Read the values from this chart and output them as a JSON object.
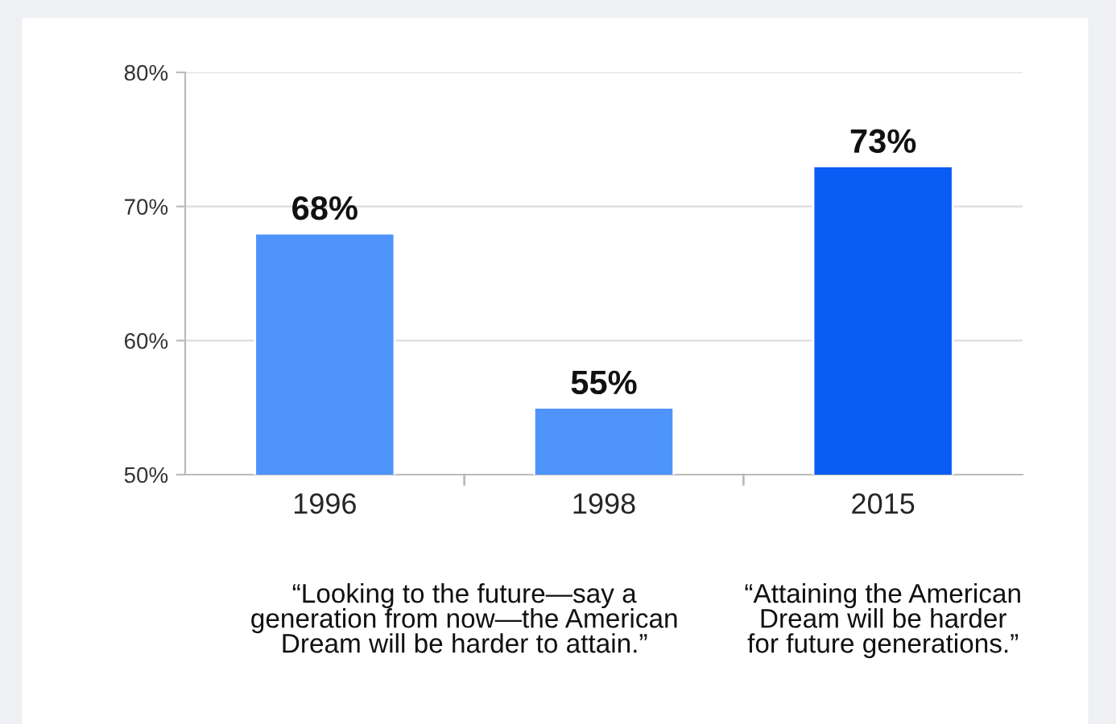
{
  "chart_data": {
    "type": "bar",
    "categories": [
      "1996",
      "1998",
      "2015"
    ],
    "values": [
      68,
      55,
      73
    ],
    "colors": [
      "#4f94fb",
      "#4f94fb",
      "#0a5cf5"
    ],
    "value_labels": [
      "68%",
      "55%",
      "73%"
    ],
    "ylim": [
      50,
      80
    ],
    "yticks": [
      {
        "value": 50,
        "label": "50%"
      },
      {
        "value": 60,
        "label": "60%"
      },
      {
        "value": 70,
        "label": "70%"
      },
      {
        "value": 80,
        "label": "80%"
      }
    ],
    "grid": "y",
    "annotations": [
      "“Looking to the future—say a\ngeneration from now—the American\nDream will be harder to attain.”",
      "“Attaining the American\nDream will be harder\nfor future generations.”"
    ]
  }
}
